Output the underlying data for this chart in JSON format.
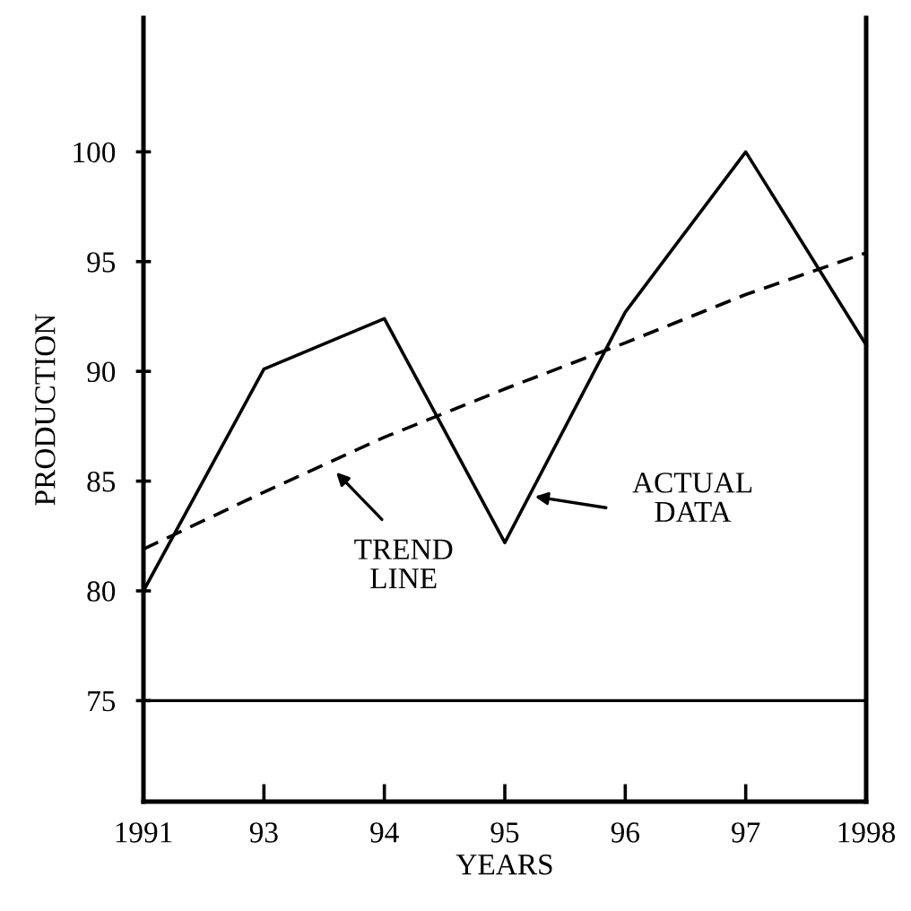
{
  "chart_data": {
    "type": "line",
    "xlabel": "YEARS",
    "ylabel": "PRODUCTION",
    "categories": [
      "1991",
      "93",
      "94",
      "95",
      "96",
      "97",
      "1998"
    ],
    "ylim": [
      70.4,
      106.1
    ],
    "yticks": [
      75,
      80,
      85,
      90,
      95,
      100
    ],
    "series": [
      {
        "color": "#000000",
        "line_style": "solid",
        "values": [
          80,
          90.1,
          92.4,
          82.2,
          92.7,
          100,
          91.2
        ]
      },
      {
        "color": "#000000",
        "line_style": "dashed",
        "values": [
          81.9,
          84.5,
          87.0,
          89.2,
          91.3,
          93.5,
          95.4
        ]
      }
    ],
    "ref_lines": [
      {
        "axis": "y",
        "value": 75,
        "color": "#000000"
      }
    ],
    "annotations": [
      "TREND\nLINE",
      "ACTUAL\nDATA"
    ],
    "grid": false,
    "legend": false
  }
}
